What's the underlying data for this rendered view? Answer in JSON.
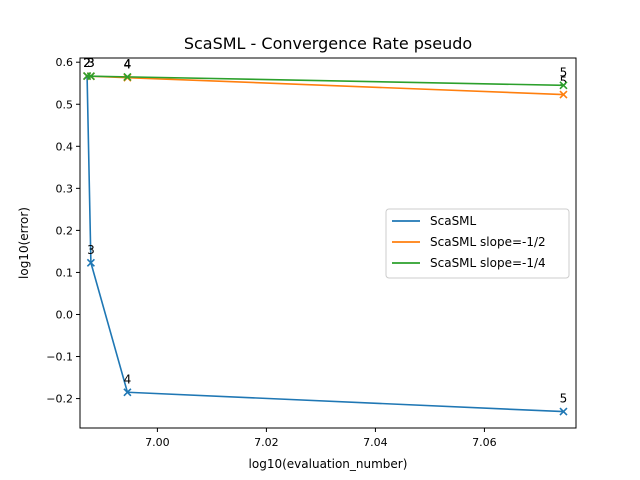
{
  "chart_data": {
    "type": "line",
    "title": "ScaSML - Convergence Rate pseudo",
    "xlabel": "log10(evaluation_number)",
    "ylabel": "log10(error)",
    "xlim": [
      6.9858,
      7.0768
    ],
    "ylim": [
      -0.27,
      0.61
    ],
    "xticks": [
      7.0,
      7.02,
      7.04,
      7.06
    ],
    "xtick_labels": [
      "7.00",
      "7.02",
      "7.04",
      "7.06"
    ],
    "yticks": [
      -0.2,
      -0.1,
      0.0,
      0.1,
      0.2,
      0.3,
      0.4,
      0.5,
      0.6
    ],
    "ytick_labels": [
      "−0.2",
      "−0.1",
      "0.0",
      "0.1",
      "0.2",
      "0.3",
      "0.4",
      "0.5",
      "0.6"
    ],
    "legend_position": "right",
    "grid": false,
    "series": [
      {
        "name": "ScaSML",
        "color": "#1f77b4",
        "x": [
          6.9871,
          6.9878,
          6.9945,
          7.0745
        ],
        "y": [
          0.567,
          0.123,
          -0.185,
          -0.231
        ],
        "point_labels": [
          "2",
          "3",
          "4",
          "5"
        ]
      },
      {
        "name": "ScaSML slope=-1/2",
        "color": "#ff7f0e",
        "x": [
          6.9871,
          6.9878,
          6.9945,
          7.0745
        ],
        "y": [
          0.567,
          0.5666,
          0.5633,
          0.523
        ],
        "point_labels": [
          "2",
          "3",
          "4",
          "5"
        ]
      },
      {
        "name": "ScaSML slope=-1/4",
        "color": "#2ca02c",
        "x": [
          6.9871,
          6.9878,
          6.9945,
          7.0745
        ],
        "y": [
          0.567,
          0.5668,
          0.5651,
          0.545
        ],
        "point_labels": [
          "2",
          "3",
          "4",
          "5"
        ]
      }
    ]
  }
}
